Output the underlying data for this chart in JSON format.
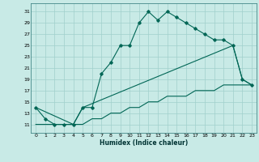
{
  "xlabel": "Humidex (Indice chaleur)",
  "background_color": "#c8eae6",
  "grid_color": "#a0d0cc",
  "line_color": "#006655",
  "xlim": [
    -0.5,
    23.5
  ],
  "ylim": [
    9.5,
    32.5
  ],
  "yticks": [
    11,
    13,
    15,
    17,
    19,
    21,
    23,
    25,
    27,
    29,
    31
  ],
  "xticks": [
    0,
    1,
    2,
    3,
    4,
    5,
    6,
    7,
    8,
    9,
    10,
    11,
    12,
    13,
    14,
    15,
    16,
    17,
    18,
    19,
    20,
    21,
    22,
    23
  ],
  "series1_x": [
    0,
    1,
    2,
    3,
    4,
    5,
    6,
    7,
    8,
    9,
    10,
    11,
    12,
    13,
    14,
    15,
    16,
    17,
    18,
    19,
    20,
    21,
    22,
    23
  ],
  "series1_y": [
    14,
    12,
    11,
    11,
    11,
    14,
    14,
    20,
    22,
    25,
    25,
    29,
    31,
    29.5,
    31,
    30,
    29,
    28,
    27,
    26,
    26,
    25,
    19,
    18
  ],
  "series2_x": [
    0,
    4,
    5,
    21,
    22,
    23
  ],
  "series2_y": [
    14,
    11,
    14,
    25,
    19,
    18
  ],
  "series3_x": [
    0,
    1,
    2,
    3,
    4,
    5,
    6,
    7,
    8,
    9,
    10,
    11,
    12,
    13,
    14,
    15,
    16,
    17,
    18,
    19,
    20,
    21,
    22,
    23
  ],
  "series3_y": [
    11,
    11,
    11,
    11,
    11,
    11,
    12,
    12,
    13,
    13,
    14,
    14,
    15,
    15,
    16,
    16,
    16,
    17,
    17,
    17,
    18,
    18,
    18,
    18
  ]
}
